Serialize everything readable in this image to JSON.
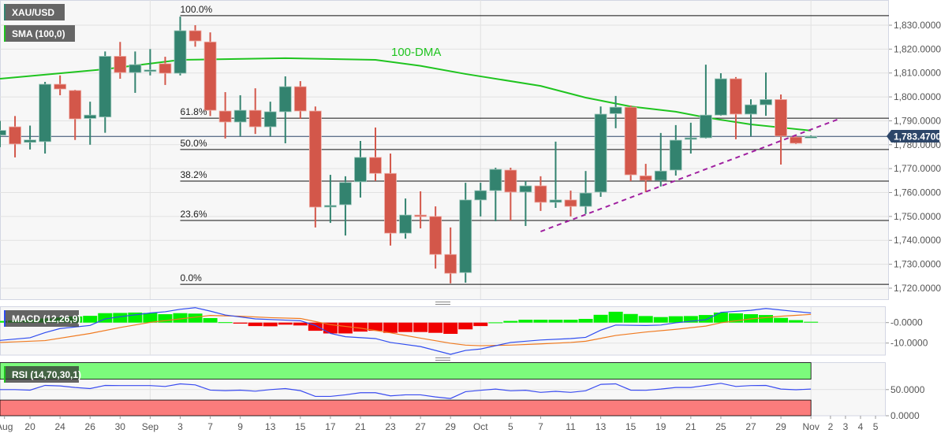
{
  "header": {
    "symbol": "XAU/USD",
    "indicator": "SMA (100,0)",
    "macd_label": "MACD (12,26,9)",
    "rsi_label": "RSI (14,70,30,1)"
  },
  "colors": {
    "up": "#33836f",
    "down": "#d3574a",
    "sma": "#1fc41f",
    "trend": "#a020a0",
    "macd": "#2f4cf0",
    "signal": "#f07a20",
    "hist_up": "#00f000",
    "hist_down": "#f00000",
    "rsi": "#3a4cf0",
    "overbought": "#7cfb7c",
    "oversold": "#fb7c7c",
    "price_tag": "#2d4669"
  },
  "chart_data": [
    {
      "type": "candlestick",
      "title": "XAU/USD",
      "ylim": [
        1715,
        1838
      ],
      "yticks": [
        "1,720.0000",
        "1,730.0000",
        "1,740.0000",
        "1,750.0000",
        "1,760.0000",
        "1,770.0000",
        "1,780.0000",
        "1,790.0000",
        "1,800.0000",
        "1,810.0000",
        "1,820.0000",
        "1,830.0000"
      ],
      "ytick_values": [
        1720,
        1730,
        1740,
        1750,
        1760,
        1770,
        1780,
        1790,
        1800,
        1810,
        1820,
        1830
      ],
      "xticks": [
        {
          "label": "Aug",
          "i": 0.3
        },
        {
          "label": "20",
          "i": 2
        },
        {
          "label": "24",
          "i": 4
        },
        {
          "label": "26",
          "i": 6
        },
        {
          "label": "30",
          "i": 8
        },
        {
          "label": "Sep",
          "i": 10
        },
        {
          "label": "3",
          "i": 12
        },
        {
          "label": "7",
          "i": 14
        },
        {
          "label": "9",
          "i": 16
        },
        {
          "label": "13",
          "i": 18
        },
        {
          "label": "15",
          "i": 20
        },
        {
          "label": "17",
          "i": 22
        },
        {
          "label": "21",
          "i": 24
        },
        {
          "label": "23",
          "i": 26
        },
        {
          "label": "27",
          "i": 28
        },
        {
          "label": "29",
          "i": 30
        },
        {
          "label": "Oct",
          "i": 32
        },
        {
          "label": "5",
          "i": 34
        },
        {
          "label": "7",
          "i": 36
        },
        {
          "label": "11",
          "i": 38
        },
        {
          "label": "13",
          "i": 40
        },
        {
          "label": "15",
          "i": 42
        },
        {
          "label": "19",
          "i": 44
        },
        {
          "label": "21",
          "i": 46
        },
        {
          "label": "25",
          "i": 48
        },
        {
          "label": "27",
          "i": 50
        },
        {
          "label": "29",
          "i": 52
        },
        {
          "label": "Nov",
          "i": 54
        },
        {
          "label": "2",
          "i": 55.3
        },
        {
          "label": "3",
          "i": 56.3
        },
        {
          "label": "4",
          "i": 57.3
        },
        {
          "label": "5",
          "i": 58.3
        }
      ],
      "candles_ohlc": [
        [
          1784,
          1790,
          1779,
          1786
        ],
        [
          1787.5,
          1792,
          1774.7,
          1780.3
        ],
        [
          1781,
          1788,
          1778,
          1782
        ],
        [
          1781.3,
          1806.3,
          1776.3,
          1805.3
        ],
        [
          1805.3,
          1809,
          1800.7,
          1803.3
        ],
        [
          1802.7,
          1803,
          1782,
          1790.8
        ],
        [
          1791,
          1798,
          1780,
          1792.4
        ],
        [
          1791.6,
          1819,
          1785,
          1817
        ],
        [
          1817,
          1823,
          1807.6,
          1810.2
        ],
        [
          1810.2,
          1819,
          1801.7,
          1813.5
        ],
        [
          1811,
          1820,
          1809,
          1811.3
        ],
        [
          1813.9,
          1816.8,
          1805,
          1809.9
        ],
        [
          1809.9,
          1833.6,
          1809,
          1827.7
        ],
        [
          1827.7,
          1830,
          1821,
          1823.4
        ],
        [
          1823,
          1827,
          1792,
          1794.4
        ],
        [
          1794.1,
          1802,
          1782.6,
          1789.5
        ],
        [
          1789.5,
          1800.7,
          1783.6,
          1794.4
        ],
        [
          1794.4,
          1803.6,
          1784.5,
          1787.5
        ],
        [
          1787.5,
          1798,
          1783.6,
          1793.8
        ],
        [
          1793.8,
          1808.6,
          1780.6,
          1804.3
        ],
        [
          1804.3,
          1806.6,
          1790.8,
          1794.1
        ],
        [
          1794.1,
          1796,
          1745.4,
          1753.9
        ],
        [
          1754,
          1767.4,
          1747.3,
          1754.6
        ],
        [
          1754.9,
          1766.8,
          1742,
          1764.2
        ],
        [
          1764.5,
          1781.6,
          1757.9,
          1774.7
        ],
        [
          1774.7,
          1787.2,
          1764.8,
          1768
        ],
        [
          1768,
          1776.3,
          1737.8,
          1743
        ],
        [
          1743,
          1757.5,
          1740.7,
          1750.6
        ],
        [
          1750.6,
          1760.5,
          1745,
          1750.3
        ],
        [
          1750,
          1754.2,
          1728.2,
          1734.1
        ],
        [
          1734.1,
          1745.4,
          1722,
          1726.2
        ],
        [
          1726.5,
          1764.1,
          1722.3,
          1756.9
        ],
        [
          1756.9,
          1764.1,
          1750,
          1760.8
        ],
        [
          1760.8,
          1770.4,
          1748,
          1769.7
        ],
        [
          1769.4,
          1770.4,
          1748.3,
          1760.2
        ],
        [
          1760.2,
          1764.8,
          1746,
          1762.8
        ],
        [
          1762.8,
          1766.8,
          1752.3,
          1755.9
        ],
        [
          1755.9,
          1781.3,
          1753.6,
          1756.9
        ],
        [
          1756.9,
          1760.8,
          1750,
          1754.2
        ],
        [
          1754.2,
          1769,
          1751,
          1759.8
        ],
        [
          1760.2,
          1796,
          1758.2,
          1792.8
        ],
        [
          1793,
          1800.4,
          1786.9,
          1795.7
        ],
        [
          1795.7,
          1796.4,
          1764.8,
          1767.4
        ],
        [
          1767,
          1772,
          1760.2,
          1765.1
        ],
        [
          1765.1,
          1784.9,
          1762.5,
          1769
        ],
        [
          1769.4,
          1788.2,
          1767.1,
          1781.9
        ],
        [
          1782.3,
          1789.2,
          1776.3,
          1782.9
        ],
        [
          1782.9,
          1813.5,
          1782.6,
          1792.4
        ],
        [
          1792.4,
          1809.9,
          1792.1,
          1807.6
        ],
        [
          1807.6,
          1808.3,
          1782.3,
          1792.8
        ],
        [
          1792.8,
          1799,
          1783.6,
          1796.7
        ],
        [
          1796.7,
          1810.2,
          1792.1,
          1798.9
        ],
        [
          1798.9,
          1801,
          1771.7,
          1783.6
        ],
        [
          1783.2,
          1783.6,
          1780.3,
          1780.6
        ],
        [
          1783.2,
          1783.9,
          1782.8,
          1783.47
        ]
      ],
      "sma_100": {
        "label": "100-DMA",
        "points": [
          [
            0,
            1807.6
          ],
          [
            7,
            1811.6
          ],
          [
            12,
            1815.5
          ],
          [
            19,
            1816.2
          ],
          [
            25,
            1815.5
          ],
          [
            28,
            1813
          ],
          [
            31,
            1809.6
          ],
          [
            36,
            1804.6
          ],
          [
            39,
            1799.7
          ],
          [
            42,
            1796
          ],
          [
            45,
            1793.8
          ],
          [
            47,
            1791.4
          ],
          [
            50,
            1788.5
          ],
          [
            52,
            1787.2
          ],
          [
            54,
            1785.9
          ]
        ]
      },
      "trendline": {
        "points": [
          [
            36,
            1743.7
          ],
          [
            56,
            1791.1
          ]
        ],
        "style": "dashed"
      },
      "fibonacci": {
        "start_index": 12,
        "levels": [
          {
            "label": "100.0%",
            "price": 1834
          },
          {
            "label": "61.8%",
            "price": 1791.1
          },
          {
            "label": "50.0%",
            "price": 1778
          },
          {
            "label": "38.2%",
            "price": 1764.8
          },
          {
            "label": "23.6%",
            "price": 1748.3
          },
          {
            "label": "0.0%",
            "price": 1721.6
          }
        ]
      },
      "last_price": {
        "value": 1783.47,
        "label": "1,783.4700"
      }
    },
    {
      "type": "macd",
      "title": "MACD (12,26,9)",
      "ylim": [
        -15.9,
        7.6
      ],
      "yticks": [
        "-0.0000",
        "-10.0000"
      ],
      "ytick_values": [
        0,
        -10
      ],
      "histogram": [
        0.8,
        1,
        1.5,
        2,
        2.5,
        3,
        3.3,
        4.6,
        4.7,
        4.9,
        4.7,
        4.1,
        4.6,
        4.4,
        2.2,
        0.2,
        -0.5,
        -1.7,
        -1.8,
        -1,
        -1.4,
        -4,
        -5.3,
        -5.3,
        -4.4,
        -4,
        -5,
        -4.6,
        -4.6,
        -5,
        -5.5,
        -3.3,
        -1.7,
        0.1,
        0.8,
        1.4,
        1.4,
        1.4,
        1.4,
        1.8,
        3.8,
        5.3,
        4.2,
        3.2,
        2.7,
        3.1,
        3.2,
        3.7,
        4.9,
        4.5,
        4.1,
        3.7,
        2.3,
        1.2,
        0.4
      ],
      "macd_line": [
        [
          0,
          -8.7
        ],
        [
          2,
          -7.4
        ],
        [
          3,
          -4.9
        ],
        [
          4,
          -2.9
        ],
        [
          6,
          -1.4
        ],
        [
          7,
          1.8
        ],
        [
          8,
          2.9
        ],
        [
          10,
          4.7
        ],
        [
          11,
          5.3
        ],
        [
          12,
          6.5
        ],
        [
          13,
          7.3
        ],
        [
          14,
          5.6
        ],
        [
          15,
          3.7
        ],
        [
          17,
          1.8
        ],
        [
          19,
          1.2
        ],
        [
          20,
          0.9
        ],
        [
          21,
          -1.4
        ],
        [
          22,
          -5.3
        ],
        [
          23,
          -6.9
        ],
        [
          25,
          -7.8
        ],
        [
          26,
          -9.7
        ],
        [
          28,
          -11.7
        ],
        [
          30,
          -15.5
        ],
        [
          31,
          -13.6
        ],
        [
          32,
          -12.9
        ],
        [
          34,
          -9.7
        ],
        [
          36,
          -8.5
        ],
        [
          38,
          -7.8
        ],
        [
          39,
          -7.2
        ],
        [
          40,
          -3.7
        ],
        [
          41,
          -1.2
        ],
        [
          43,
          -1.4
        ],
        [
          44,
          -1.2
        ],
        [
          45,
          -0.1
        ],
        [
          47,
          1.4
        ],
        [
          48,
          5
        ],
        [
          50,
          6
        ],
        [
          51,
          6.9
        ],
        [
          53,
          5.4
        ],
        [
          54,
          4.7
        ]
      ],
      "signal_line": [
        [
          0,
          -9.7
        ],
        [
          3,
          -8.8
        ],
        [
          6,
          -5.3
        ],
        [
          8,
          -2.4
        ],
        [
          10,
          0.1
        ],
        [
          12,
          1.8
        ],
        [
          14,
          3.5
        ],
        [
          16,
          3.1
        ],
        [
          18,
          2.4
        ],
        [
          20,
          2
        ],
        [
          21,
          0.5
        ],
        [
          22,
          -1
        ],
        [
          24,
          -2.7
        ],
        [
          26,
          -5
        ],
        [
          28,
          -7.6
        ],
        [
          30,
          -10.1
        ],
        [
          31,
          -11
        ],
        [
          32,
          -11.3
        ],
        [
          34,
          -11
        ],
        [
          36,
          -10.4
        ],
        [
          38,
          -9.7
        ],
        [
          39,
          -9.1
        ],
        [
          41,
          -6.3
        ],
        [
          43,
          -4.6
        ],
        [
          45,
          -3.3
        ],
        [
          47,
          -1.7
        ],
        [
          48,
          -0.1
        ],
        [
          50,
          1.8
        ],
        [
          52,
          3.1
        ],
        [
          54,
          4
        ]
      ]
    },
    {
      "type": "rsi",
      "title": "RSI (14,70,30,1)",
      "ylim": [
        0,
        101
      ],
      "yticks": [
        "50.0000",
        "0.0000"
      ],
      "ytick_values": [
        50,
        0
      ],
      "overbought": 70,
      "oversold": 30,
      "values": [
        50,
        50,
        49,
        58,
        57,
        54,
        52,
        58,
        57.7,
        57.7,
        57.7,
        56,
        61,
        59,
        49,
        48,
        49,
        47,
        50,
        52,
        48,
        37,
        37,
        40,
        44,
        44,
        38,
        40,
        40,
        36,
        33,
        46,
        48.7,
        51,
        47.7,
        48.7,
        44.7,
        46.7,
        44.7,
        47.7,
        60,
        61,
        49,
        48.7,
        51,
        54,
        54,
        58,
        62,
        56,
        57.7,
        58,
        51,
        49.7,
        51
      ]
    }
  ]
}
